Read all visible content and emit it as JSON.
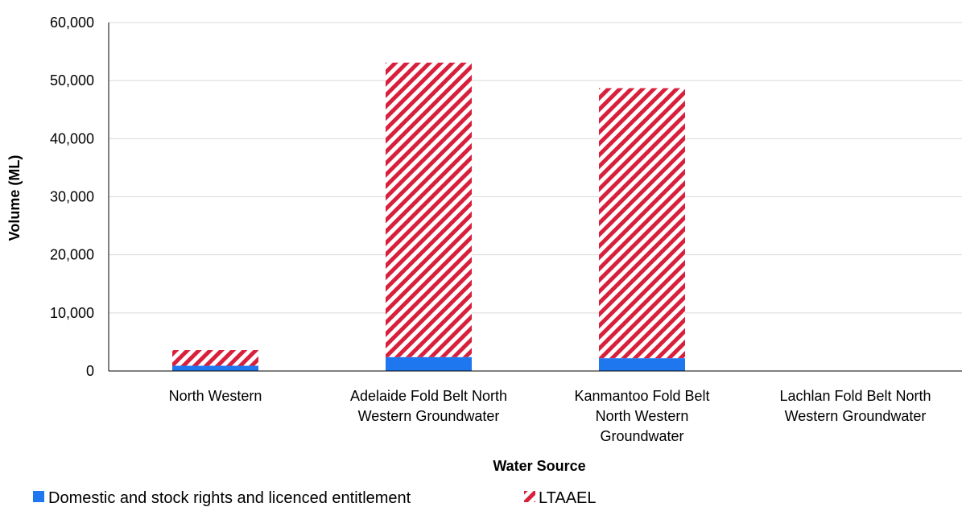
{
  "chart_data": {
    "type": "bar",
    "stacked": true,
    "title": "",
    "xlabel": "Water Source",
    "ylabel": "Volume (ML)",
    "ylim": [
      0,
      60000
    ],
    "yticks": [
      0,
      10000,
      20000,
      30000,
      40000,
      50000,
      60000
    ],
    "ytick_labels": [
      "0",
      "10,000",
      "20,000",
      "30,000",
      "40,000",
      "50,000",
      "60,000"
    ],
    "grid": true,
    "legend_position": "bottom-left",
    "categories": [
      [
        "North Western"
      ],
      [
        "Adelaide Fold Belt North",
        "Western Groundwater"
      ],
      [
        "Kanmantoo Fold Belt",
        "North Western",
        "Groundwater"
      ],
      [
        "Lachlan Fold Belt North",
        "Western Groundwater"
      ]
    ],
    "series": [
      {
        "name": "Domestic and stock rights and licenced entitlement",
        "color": "#1f77f0",
        "pattern": "solid",
        "values": [
          900,
          2400,
          2200,
          0
        ]
      },
      {
        "name": "LTAAEL",
        "color": "#d8203c",
        "pattern": "diagonal-stripes",
        "values": [
          2700,
          50700,
          46500,
          0
        ]
      }
    ]
  }
}
